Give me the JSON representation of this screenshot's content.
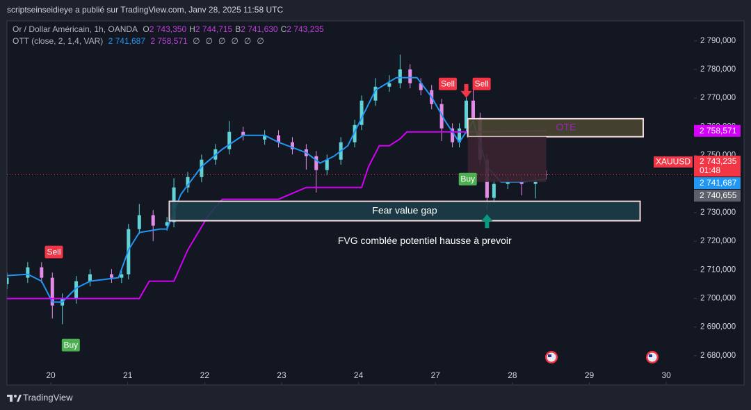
{
  "header": {
    "publisher": "scriptseinseidieye a publié sur TradingView.com, Janv 28, 2025 11:58 UTC"
  },
  "footer": {
    "brand": "TradingView"
  },
  "chart_data": {
    "type": "candlestick",
    "legend": {
      "symbol": "Or / Dollar Américain, 1h, OANDA",
      "ohlc": [
        {
          "key": "O",
          "text": "2 743,350"
        },
        {
          "key": "H",
          "text": "2 744,715"
        },
        {
          "key": "B",
          "text": "2 741,630"
        },
        {
          "key": "C",
          "text": "2 743,235"
        }
      ],
      "indicator": "OTT (close, 2, 1,4, VAR)",
      "indicator_values": [
        "2 741,687",
        "2 758,571"
      ],
      "indicator_empty": [
        "∅",
        "∅",
        "∅",
        "∅",
        "∅",
        "∅"
      ]
    },
    "xlim": [
      -0.57,
      8.36
    ],
    "xticks": [
      {
        "value": 0,
        "label": "20"
      },
      {
        "value": 1,
        "label": "21"
      },
      {
        "value": 2,
        "label": "22"
      },
      {
        "value": 3,
        "label": "23"
      },
      {
        "value": 4,
        "label": "24"
      },
      {
        "value": 5,
        "label": "27"
      },
      {
        "value": 6,
        "label": "28"
      },
      {
        "value": 7,
        "label": "29"
      },
      {
        "value": 8,
        "label": "30"
      }
    ],
    "ylim": [
      2670000,
      2797000
    ],
    "yticks": [
      {
        "value": 2790000,
        "label": "2 790,000"
      },
      {
        "value": 2780000,
        "label": "2 780,000"
      },
      {
        "value": 2770000,
        "label": "2 770,000"
      },
      {
        "value": 2760000,
        "label": "2 760,000"
      },
      {
        "value": 2750000,
        "label": "2 750,000"
      },
      {
        "value": 2740000,
        "label": "2 740,000"
      },
      {
        "value": 2730000,
        "label": "2 730,000"
      },
      {
        "value": 2720000,
        "label": "2 720,000"
      },
      {
        "value": 2710000,
        "label": "2 710,000"
      },
      {
        "value": 2700000,
        "label": "2 700,000"
      },
      {
        "value": 2690000,
        "label": "2 690,000"
      },
      {
        "value": 2680000,
        "label": "2 680,000"
      }
    ],
    "grid": false,
    "candles": {
      "up_color": "#5fd3d6",
      "down_color": "#e48be8",
      "x": [
        -0.57,
        -0.3,
        -0.12,
        0.02,
        0.15,
        0.33,
        0.51,
        0.79,
        0.92,
        1.01,
        1.15,
        1.33,
        1.51,
        1.6,
        1.78,
        1.96,
        2.14,
        2.32,
        2.5,
        2.78,
        2.96,
        3.14,
        3.32,
        3.45,
        3.59,
        3.77,
        3.95,
        4.04,
        4.22,
        4.4,
        4.54,
        4.67,
        4.81,
        4.95,
        5.08,
        5.22,
        5.31,
        5.4,
        5.49,
        5.58,
        5.67,
        5.76,
        5.94,
        6.12,
        6.3,
        6.44
      ],
      "open": [
        2705000,
        2707240,
        2710880,
        2707240,
        2697530,
        2699960,
        2706030,
        2708450,
        2707240,
        2708450,
        2724230,
        2729080,
        2725440,
        2726660,
        2738790,
        2742430,
        2748500,
        2752140,
        2758210,
        2755500,
        2756990,
        2754570,
        2752140,
        2749710,
        2744860,
        2748500,
        2754570,
        2760630,
        2769130,
        2773980,
        2775200,
        2780050,
        2775200,
        2772770,
        2767910,
        2759420,
        2754570,
        2759420,
        2769130,
        2763060,
        2748500,
        2735150,
        2740000,
        2740730,
        2740000,
        2743350
      ],
      "high": [
        2709040,
        2712680,
        2712680,
        2709040,
        2701760,
        2707830,
        2710250,
        2710250,
        2710250,
        2726030,
        2733000,
        2730880,
        2728460,
        2742000,
        2744230,
        2750300,
        2753940,
        2762000,
        2760010,
        2758790,
        2758790,
        2756370,
        2753940,
        2751510,
        2750300,
        2756370,
        2762430,
        2770930,
        2777000,
        2778000,
        2785200,
        2781850,
        2777000,
        2774570,
        2769710,
        2761220,
        2761220,
        2773000,
        2773500,
        2764860,
        2750300,
        2741800,
        2742530,
        2742530,
        2742530,
        2744715
      ],
      "low": [
        2703200,
        2705440,
        2705440,
        2693000,
        2691000,
        2698160,
        2704230,
        2705440,
        2705440,
        2706650,
        2722430,
        2720000,
        2723640,
        2724860,
        2736990,
        2740630,
        2746700,
        2750340,
        2755190,
        2753700,
        2752770,
        2750340,
        2745000,
        2737000,
        2743060,
        2746700,
        2752770,
        2758830,
        2767330,
        2772180,
        2773400,
        2773400,
        2770970,
        2766110,
        2755000,
        2752770,
        2752770,
        2757620,
        2761260,
        2746700,
        2731000,
        2733000,
        2738200,
        2736000,
        2735000,
        2741630
      ],
      "close": [
        2707240,
        2710880,
        2707240,
        2697530,
        2699960,
        2706030,
        2708450,
        2707240,
        2708450,
        2724230,
        2729080,
        2725440,
        2726660,
        2738790,
        2742430,
        2748500,
        2752140,
        2758210,
        2756990,
        2756990,
        2754570,
        2752140,
        2749710,
        2744860,
        2748500,
        2754570,
        2760630,
        2769130,
        2773980,
        2775200,
        2780050,
        2775200,
        2772770,
        2767910,
        2759420,
        2754570,
        2759420,
        2769130,
        2763060,
        2748500,
        2735150,
        2740000,
        2740730,
        2740000,
        2740730,
        2743235
      ]
    },
    "series": [
      {
        "color": "#2196f3",
        "x": [
          -0.57,
          -0.3,
          -0.12,
          0.02,
          0.15,
          0.33,
          0.51,
          0.88,
          1.01,
          1.15,
          1.42,
          1.51,
          1.69,
          1.96,
          2.23,
          2.5,
          2.78,
          2.96,
          3.32,
          3.5,
          3.68,
          3.86,
          4.04,
          4.22,
          4.49,
          4.76,
          4.95,
          5.13,
          5.31,
          5.49,
          5.67,
          5.85,
          6.12,
          6.44
        ],
        "values": [
          2707970,
          2708450,
          2706030,
          2698750,
          2698750,
          2703600,
          2706030,
          2707240,
          2716950,
          2723020,
          2724230,
          2724230,
          2736360,
          2746070,
          2752140,
          2756990,
          2756990,
          2754570,
          2750930,
          2747290,
          2749710,
          2753350,
          2763060,
          2772770,
          2777140,
          2777140,
          2770340,
          2761850,
          2754570,
          2761850,
          2746070,
          2740730,
          2740730,
          2741687
        ]
      },
      {
        "color": "#d500f9",
        "x": [
          -0.57,
          1.15,
          1.28,
          1.6,
          1.78,
          2.05,
          2.23,
          2.96,
          3.32,
          4.04,
          4.13,
          4.27,
          4.4,
          4.54,
          4.63,
          5.49,
          6.44
        ],
        "values": [
          2699960,
          2699960,
          2706030,
          2706030,
          2716950,
          2729080,
          2734660,
          2734660,
          2738790,
          2738790,
          2746070,
          2753350,
          2753350,
          2755780,
          2758210,
          2758210,
          2758571
        ]
      }
    ],
    "zones": [
      {
        "text": "OTE",
        "x": [
          5.42,
          7.7
        ],
        "y": [
          2756500,
          2762800
        ],
        "fill": "#4a4532",
        "stroke": "#f3d9dc",
        "text_color": "#9c27b0"
      },
      {
        "text": "Fear value gap",
        "x": [
          1.54,
          7.66
        ],
        "y": [
          2727150,
          2733950
        ],
        "fill": "#1d3d48",
        "stroke": "#f3d9dc",
        "text_color": "#ffffff"
      },
      {
        "x": [
          5.42,
          6.44
        ],
        "y": [
          2740700,
          2756500
        ],
        "fill": "#3a2430"
      }
    ],
    "annotations": [
      {
        "text": "FVG comblée potentiel hausse à prevoir",
        "x": 4.86,
        "y": 2720000
      }
    ],
    "arrows": [
      {
        "direction": "down",
        "x": 5.4,
        "y": 2772500,
        "color": "#f23645"
      },
      {
        "direction": "up",
        "x": 5.67,
        "y": 2727000,
        "color": "#089981"
      }
    ],
    "signals": [
      {
        "label": "Sell",
        "x": 0.04,
        "y": 2716220,
        "color": "#f23645"
      },
      {
        "label": "Buy",
        "x": 0.26,
        "y": 2683700,
        "color": "#4caf50"
      },
      {
        "label": "Sell",
        "x": 5.16,
        "y": 2774950,
        "color": "#f23645"
      },
      {
        "label": "Sell",
        "x": 5.6,
        "y": 2774950,
        "color": "#f23645"
      },
      {
        "label": "Buy",
        "x": 5.42,
        "y": 2741700,
        "color": "#4caf50"
      }
    ],
    "price_labels": [
      {
        "value": 2758571,
        "label": "2 758,571",
        "color": "#d500f9"
      },
      {
        "value": 2743235,
        "label": "2 743,235",
        "sub": "01:48",
        "tag": "XAUUSD",
        "color": "#f23645"
      },
      {
        "value": 2741687,
        "label": "2 741,687",
        "color": "#2196f3"
      },
      {
        "value": 2740655,
        "label": "2 740,655",
        "color": "#5d606b"
      }
    ]
  }
}
